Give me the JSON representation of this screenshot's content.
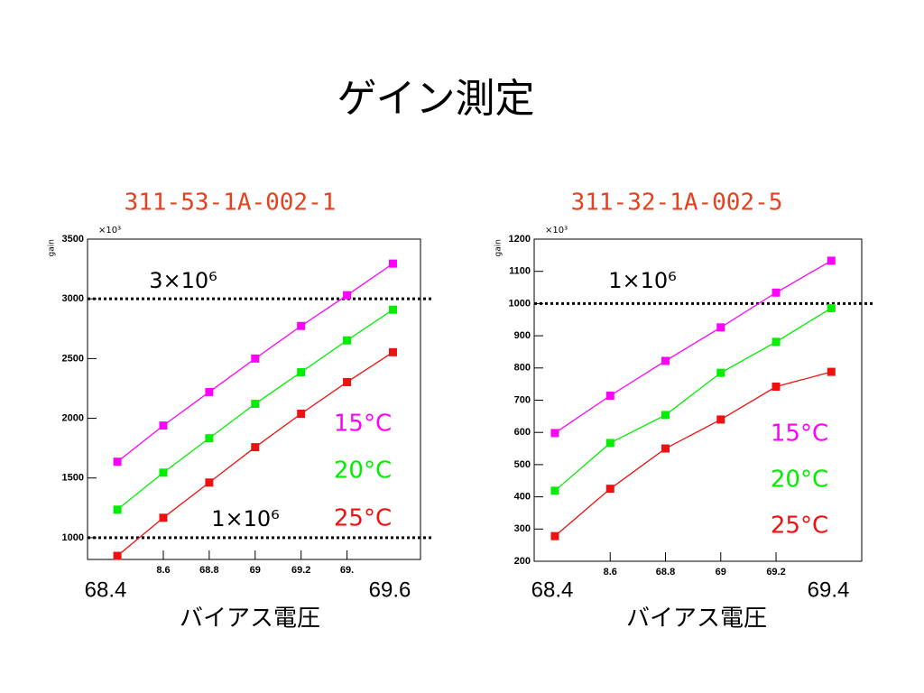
{
  "title": "ゲイン測定",
  "chart_data": [
    {
      "type": "line",
      "title": "311-53-1A-002-1",
      "ylabel": "gain",
      "y_multiplier": "×10³",
      "xlabel": "バイアス電圧",
      "x_end_labels": [
        "68.4",
        "69.6"
      ],
      "x": [
        68.4,
        68.6,
        68.8,
        69.0,
        69.2,
        69.4,
        69.6
      ],
      "series": [
        {
          "name": "15°C",
          "color": "#ff00ff",
          "values": [
            1636,
            1939,
            2220,
            2500,
            2773,
            3030,
            3295
          ]
        },
        {
          "name": "20°C",
          "color": "#00ee00",
          "values": [
            1235,
            1545,
            1833,
            2121,
            2386,
            2652,
            2909
          ]
        },
        {
          "name": "25°C",
          "color": "#ee1111",
          "values": [
            848,
            1167,
            1462,
            1758,
            2038,
            2303,
            2553
          ]
        }
      ],
      "xlim": [
        68.27,
        69.72
      ],
      "ylim": [
        818,
        3500
      ],
      "xticks": [
        {
          "value": 68.6,
          "label": "8.6"
        },
        68.8,
        69,
        69.2,
        {
          "value": 69.4,
          "label": "69."
        }
      ],
      "yticks": [
        1000,
        1500,
        2000,
        2500,
        3000,
        3500
      ],
      "hlines": [
        3000,
        1000
      ],
      "annotations": [
        "3×10⁶",
        "1×10⁶"
      ]
    },
    {
      "type": "line",
      "title": "311-32-1A-002-5",
      "ylabel": "gain",
      "y_multiplier": "×10³",
      "xlabel": "バイアス電圧",
      "x_end_labels": [
        "68.4",
        "69.4"
      ],
      "x": [
        68.4,
        68.6,
        68.8,
        69.0,
        69.2,
        69.4
      ],
      "series": [
        {
          "name": "15°C",
          "color": "#ff00ff",
          "values": [
            598,
            714,
            822,
            926,
            1034,
            1133
          ]
        },
        {
          "name": "20°C",
          "color": "#00ee00",
          "values": [
            419,
            567,
            654,
            785,
            881,
            986
          ]
        },
        {
          "name": "25°C",
          "color": "#ee1111",
          "values": [
            278,
            425,
            550,
            640,
            742,
            788
          ]
        }
      ],
      "xlim": [
        68.325,
        69.51
      ],
      "ylim": [
        200,
        1200
      ],
      "xticks": [
        {
          "value": 68.6,
          "label": "8.6"
        },
        68.8,
        69,
        69.2
      ],
      "yticks": [
        200,
        300,
        400,
        500,
        600,
        700,
        800,
        900,
        1000,
        1100,
        1200
      ],
      "hlines": [
        1000
      ],
      "annotations": [
        "1×10⁶"
      ]
    }
  ]
}
